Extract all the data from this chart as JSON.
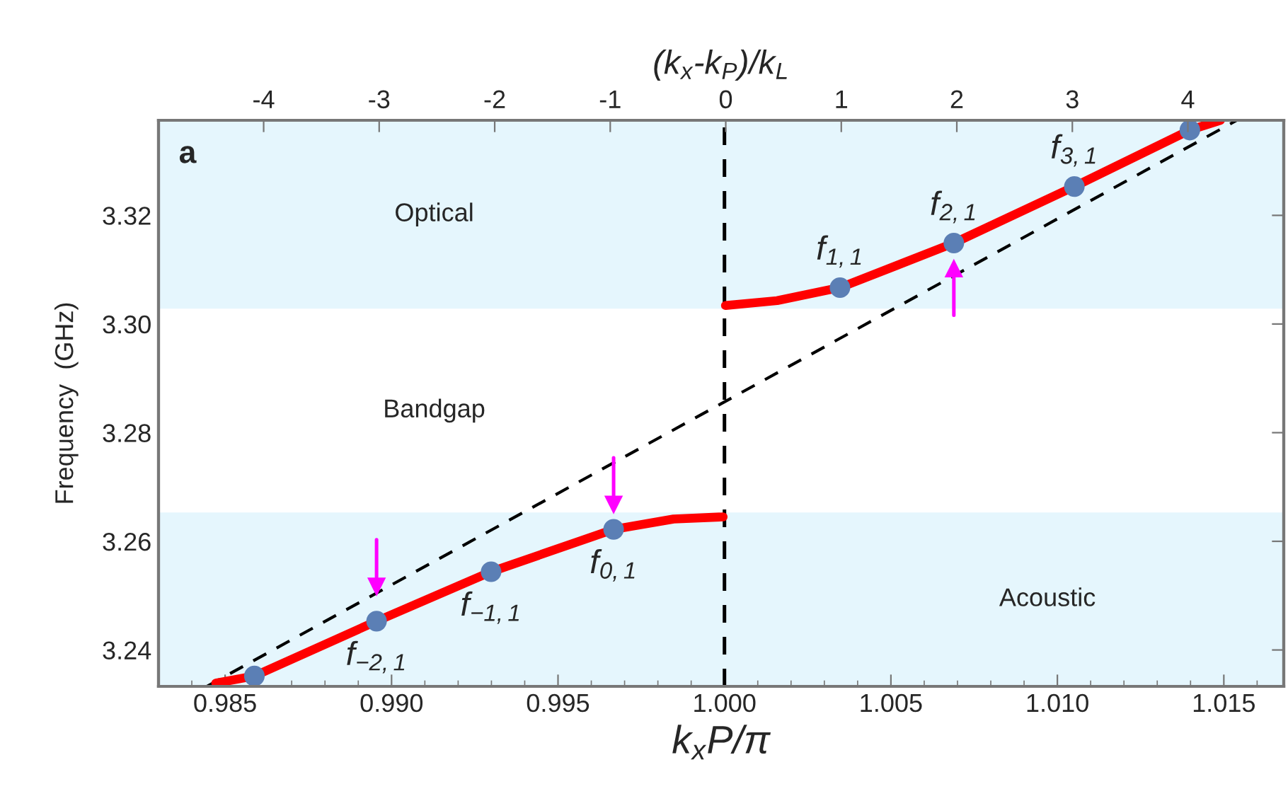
{
  "chart_data": {
    "type": "line",
    "xlabel": "k$_{x}$P/π",
    "ylabel": "Frequency  (GHz)",
    "x2label": "(k$_{x}$-k$_{P}$)/k$_{L}$",
    "xlim": [
      0.983,
      1.0168
    ],
    "ylim": [
      3.2333,
      3.3375
    ],
    "x2lim": [
      -4.91,
      4.83
    ],
    "xticks": [
      {
        "value": 0.985,
        "label": "0.985"
      },
      {
        "value": 0.99,
        "label": "0.990"
      },
      {
        "value": 0.995,
        "label": "0.995"
      },
      {
        "value": 1.0,
        "label": "1.000"
      },
      {
        "value": 1.005,
        "label": "1.005"
      },
      {
        "value": 1.01,
        "label": "1.010"
      },
      {
        "value": 1.015,
        "label": "1.015"
      }
    ],
    "yticks": [
      {
        "value": 3.24,
        "label": "3.24"
      },
      {
        "value": 3.26,
        "label": "3.26"
      },
      {
        "value": 3.28,
        "label": "3.28"
      },
      {
        "value": 3.3,
        "label": "3.30"
      },
      {
        "value": 3.32,
        "label": "3.32"
      }
    ],
    "x2ticks": [
      -4,
      -3,
      -2,
      -1,
      0,
      1,
      2,
      3,
      4
    ],
    "grid": false,
    "series": [
      {
        "color": "#ff0000",
        "line_style": "solid",
        "x": [
          0.98472,
          0.98588,
          0.98955,
          0.99299,
          0.99667,
          0.99847,
          0.99996
        ],
        "values": [
          3.2339,
          3.2352,
          3.2453,
          3.2544,
          3.2622,
          3.2641,
          3.2645
        ]
      },
      {
        "color": "#ff0000",
        "line_style": "solid",
        "x": [
          1.00003,
          1.00158,
          1.00347,
          1.00689,
          1.01051,
          1.01398,
          1.0149
        ],
        "values": [
          3.3034,
          3.3043,
          3.3067,
          3.3149,
          3.3253,
          3.3357,
          3.3375
        ]
      },
      {
        "color": "#000000",
        "line_style": "dashed",
        "x": [
          0.98445,
          1.01539
        ],
        "values": [
          3.2333,
          3.3375
        ]
      },
      {
        "type": "scatter",
        "color": "#5b7fb5",
        "marker": "circle",
        "x": [
          0.98588,
          0.98955,
          0.99299,
          0.99667,
          1.00347,
          1.00689,
          1.01051,
          1.01398
        ],
        "values": [
          3.2352,
          3.2453,
          3.2544,
          3.2622,
          3.3067,
          3.3149,
          3.3253,
          3.3357
        ]
      },
      {
        "type": "scatter",
        "color": "#ff00ff",
        "marker": "triangle",
        "x": [
          0.98955,
          0.99667,
          1.00689
        ],
        "values": [
          3.2516,
          3.2667,
          3.3103
        ]
      }
    ],
    "ref_lines": [
      {
        "axis": "x",
        "value": 1.0,
        "color": "#000000",
        "line_style": "dashed"
      }
    ],
    "bands": [
      {
        "axis": "y",
        "from": 3.3028,
        "to": 3.3375,
        "label": "Optical",
        "color": "#e5f6fd"
      },
      {
        "axis": "y",
        "from": 3.2653,
        "to": 3.3028,
        "label": "Bandgap",
        "color": "#ffffff"
      },
      {
        "axis": "y",
        "from": 3.2333,
        "to": 3.2653,
        "label": "Acoustic",
        "color": "#e5f6fd"
      }
    ],
    "annotations": [
      "a",
      {
        "text": "f$_{−2,1}$",
        "x": 0.98955,
        "y": 3.2453
      },
      {
        "text": "f$_{−1,1}$",
        "x": 0.99299,
        "y": 3.2544
      },
      {
        "text": "f$_{0,1}$",
        "x": 0.99667,
        "y": 3.2622
      },
      {
        "text": "f$_{1,1}$",
        "x": 1.00347,
        "y": 3.3067
      },
      {
        "text": "f$_{2,1}$",
        "x": 1.00689,
        "y": 3.3149
      },
      {
        "text": "f$_{3,1}$",
        "x": 1.01051,
        "y": 3.3253
      }
    ]
  }
}
